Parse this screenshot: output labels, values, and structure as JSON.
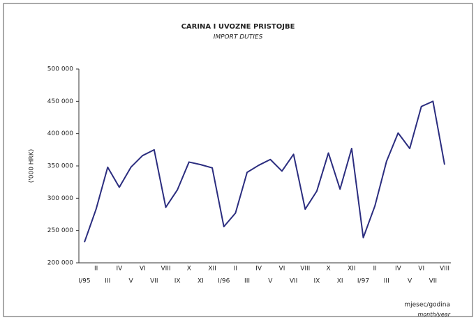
{
  "chart_data": {
    "type": "line",
    "title": "CARINA I UVOZNE PRISTOJBE",
    "subtitle": "IMPORT DUTIES",
    "y_label": "('000 HRK)",
    "x_label": "mjesec/godina",
    "x_label_sub": "month/year",
    "categories": [
      "I/95",
      "II",
      "III",
      "IV",
      "V",
      "VI",
      "VII",
      "VIII",
      "IX",
      "X",
      "XI",
      "XII",
      "I/96",
      "II",
      "III",
      "IV",
      "V",
      "VI",
      "VII",
      "VIII",
      "IX",
      "X",
      "XI",
      "XII",
      "I/97",
      "II",
      "III",
      "IV",
      "V",
      "VI",
      "VII",
      "VIII"
    ],
    "series": [
      {
        "name": "Import duties",
        "color": "#2b2d7f",
        "values": [
          232000,
          283000,
          348000,
          317000,
          348000,
          366000,
          375000,
          286000,
          313000,
          356000,
          352000,
          347000,
          256000,
          277000,
          340000,
          351000,
          360000,
          342000,
          368000,
          283000,
          311000,
          370000,
          314000,
          377000,
          239000,
          288000,
          357000,
          401000,
          377000,
          442000,
          450000,
          352000
        ]
      }
    ],
    "ylim": [
      200000,
      500000
    ],
    "yticks": [
      {
        "value": 200000,
        "label": "200 000"
      },
      {
        "value": 250000,
        "label": "250 000"
      },
      {
        "value": 300000,
        "label": "300 000"
      },
      {
        "value": 350000,
        "label": "350 000"
      },
      {
        "value": 400000,
        "label": "400 000"
      },
      {
        "value": 450000,
        "label": "450 000"
      },
      {
        "value": 500000,
        "label": "500 000"
      }
    ],
    "grid": false
  }
}
